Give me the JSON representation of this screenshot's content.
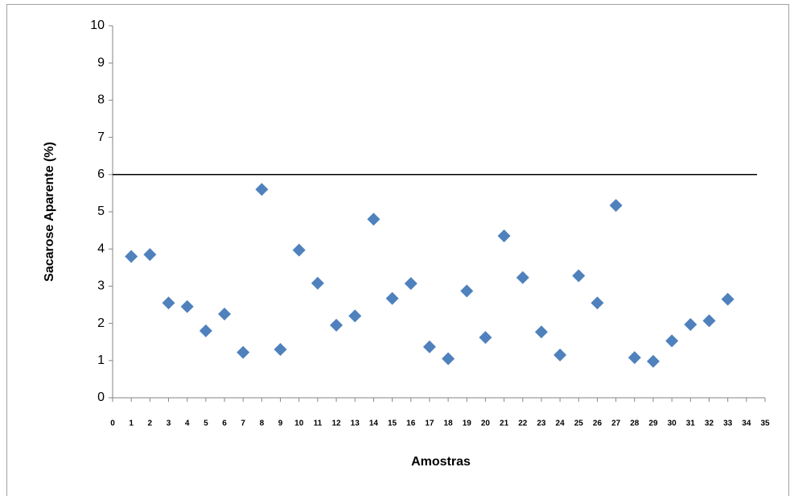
{
  "chart_data": {
    "type": "scatter",
    "y_label": "Sacarose Aparente (%)",
    "x_label": "Amostras",
    "x": [
      1,
      2,
      3,
      4,
      5,
      6,
      7,
      8,
      9,
      10,
      11,
      12,
      13,
      14,
      15,
      16,
      17,
      18,
      19,
      20,
      21,
      22,
      23,
      24,
      25,
      26,
      27,
      28,
      29,
      30,
      31,
      32,
      33
    ],
    "values": [
      3.8,
      3.85,
      2.55,
      2.45,
      1.8,
      2.25,
      1.22,
      5.6,
      1.3,
      3.97,
      3.08,
      1.95,
      2.2,
      4.8,
      2.67,
      3.07,
      1.37,
      1.05,
      2.87,
      1.62,
      4.35,
      3.23,
      1.77,
      1.15,
      3.28,
      2.55,
      5.17,
      1.08,
      0.98,
      1.53,
      1.97,
      2.07,
      2.65
    ],
    "color": "#4f81bd",
    "hline": 6,
    "xlim": [
      0,
      35
    ],
    "xticks": [
      0,
      1,
      2,
      3,
      4,
      5,
      6,
      7,
      8,
      9,
      10,
      11,
      12,
      13,
      14,
      15,
      16,
      17,
      18,
      19,
      20,
      21,
      22,
      23,
      24,
      25,
      26,
      27,
      28,
      29,
      30,
      31,
      32,
      33,
      34,
      35
    ],
    "ylim": [
      0,
      10
    ],
    "yticks": [
      0,
      1,
      2,
      3,
      4,
      5,
      6,
      7,
      8,
      9,
      10
    ]
  }
}
